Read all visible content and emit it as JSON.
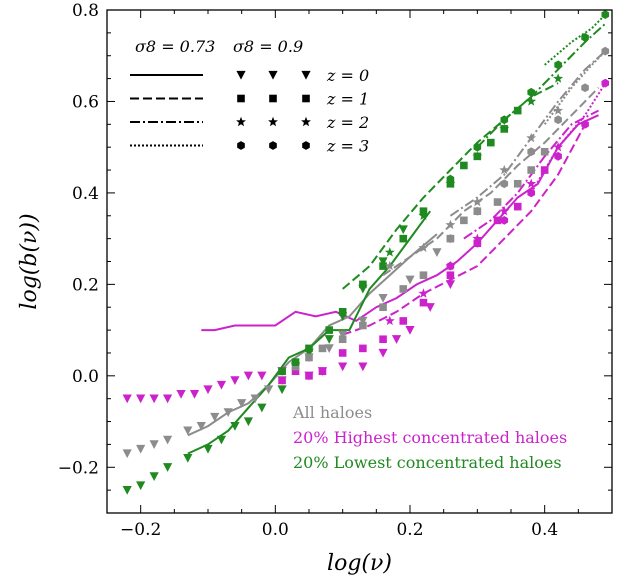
{
  "chart_data": {
    "type": "line",
    "xlabel": "log(ν)",
    "ylabel": "log(b(ν))",
    "xlim": [
      -0.25,
      0.5
    ],
    "ylim": [
      -0.3,
      0.8
    ],
    "xticks": [
      {
        "value": -0.2,
        "label": "−0.2"
      },
      {
        "value": 0.0,
        "label": "0.0"
      },
      {
        "value": 0.2,
        "label": "0.2"
      },
      {
        "value": 0.4,
        "label": "0.4"
      }
    ],
    "yticks": [
      {
        "value": -0.2,
        "label": "−0.2"
      },
      {
        "value": 0.0,
        "label": "0.0"
      },
      {
        "value": 0.2,
        "label": "0.2"
      },
      {
        "value": 0.4,
        "label": "0.4"
      },
      {
        "value": 0.6,
        "label": "0.6"
      },
      {
        "value": 0.8,
        "label": "0.8"
      }
    ],
    "grid": false,
    "colors": {
      "all": "#8c8c8c",
      "high": "#cc22cc",
      "low": "#1f8a1f"
    },
    "legend": {
      "placement": "top-left",
      "header_lines": "σ8 = 0.73",
      "header_markers": "σ8 = 0.9",
      "redshifts": [
        "z = 0",
        "z = 1",
        "z = 2",
        "z = 3"
      ]
    },
    "text_legend": {
      "placement": "bottom-right",
      "entries": [
        {
          "key": "all",
          "label": "All haloes"
        },
        {
          "key": "high",
          "label": "20% Highest concentrated haloes"
        },
        {
          "key": "low",
          "label": "20% Lowest concentrated haloes"
        }
      ]
    },
    "line_series": [
      {
        "group": "high",
        "z": 0,
        "x": [
          -0.11,
          -0.09,
          -0.06,
          -0.03,
          0.0,
          0.03,
          0.06,
          0.09,
          0.12,
          0.15,
          0.18,
          0.21,
          0.24,
          0.27,
          0.3,
          0.33,
          0.36,
          0.39,
          0.42,
          0.45,
          0.48
        ],
        "y": [
          0.1,
          0.1,
          0.11,
          0.11,
          0.11,
          0.14,
          0.13,
          0.14,
          0.12,
          0.15,
          0.17,
          0.2,
          0.22,
          0.25,
          0.29,
          0.34,
          0.39,
          0.42,
          0.5,
          0.55,
          0.57
        ]
      },
      {
        "group": "all",
        "z": 0,
        "x": [
          -0.13,
          -0.1,
          -0.07,
          -0.04,
          -0.01,
          0.02,
          0.05,
          0.08,
          0.11,
          0.14,
          0.17,
          0.2,
          0.24
        ],
        "y": [
          -0.13,
          -0.11,
          -0.08,
          -0.06,
          -0.02,
          0.03,
          0.06,
          0.11,
          0.13,
          0.18,
          0.22,
          0.26,
          0.31
        ]
      },
      {
        "group": "low",
        "z": 0,
        "x": [
          -0.13,
          -0.1,
          -0.07,
          -0.04,
          -0.01,
          0.02,
          0.05,
          0.08,
          0.11,
          0.14,
          0.17,
          0.2,
          0.23
        ],
        "y": [
          -0.17,
          -0.15,
          -0.12,
          -0.07,
          -0.02,
          0.04,
          0.06,
          0.1,
          0.1,
          0.19,
          0.24,
          0.3,
          0.36
        ]
      },
      {
        "group": "high",
        "z": 1,
        "x": [
          0.1,
          0.14,
          0.18,
          0.22,
          0.26,
          0.3,
          0.34,
          0.38,
          0.42,
          0.46
        ],
        "y": [
          0.09,
          0.11,
          0.14,
          0.18,
          0.21,
          0.24,
          0.3,
          0.36,
          0.44,
          0.55
        ]
      },
      {
        "group": "all",
        "z": 1,
        "x": [
          0.16,
          0.2,
          0.24,
          0.28,
          0.32,
          0.36,
          0.4,
          0.44,
          0.48
        ],
        "y": [
          0.22,
          0.26,
          0.3,
          0.36,
          0.4,
          0.46,
          0.51,
          0.57,
          0.63
        ]
      },
      {
        "group": "low",
        "z": 1,
        "x": [
          0.1,
          0.14,
          0.18,
          0.22,
          0.26,
          0.3,
          0.34,
          0.38,
          0.42
        ],
        "y": [
          0.19,
          0.24,
          0.32,
          0.39,
          0.45,
          0.51,
          0.56,
          0.61,
          0.64
        ]
      },
      {
        "group": "high",
        "z": 2,
        "x": [
          0.28,
          0.32,
          0.36,
          0.4,
          0.44,
          0.48
        ],
        "y": [
          0.3,
          0.34,
          0.4,
          0.48,
          0.55,
          0.58
        ]
      },
      {
        "group": "all",
        "z": 2,
        "x": [
          0.26,
          0.3,
          0.34,
          0.38,
          0.42,
          0.46,
          0.49
        ],
        "y": [
          0.35,
          0.39,
          0.44,
          0.52,
          0.6,
          0.67,
          0.71
        ]
      },
      {
        "group": "low",
        "z": 2,
        "x": [
          0.3,
          0.34,
          0.38,
          0.42,
          0.46,
          0.49
        ],
        "y": [
          0.5,
          0.56,
          0.61,
          0.67,
          0.73,
          0.77
        ]
      },
      {
        "group": "high",
        "z": 3,
        "x": [
          0.38,
          0.42,
          0.46,
          0.49
        ],
        "y": [
          0.4,
          0.5,
          0.57,
          0.64
        ]
      },
      {
        "group": "all",
        "z": 3,
        "x": [
          0.4,
          0.44,
          0.47,
          0.49
        ],
        "y": [
          0.55,
          0.63,
          0.68,
          0.71
        ]
      },
      {
        "group": "low",
        "z": 3,
        "x": [
          0.4,
          0.44,
          0.47,
          0.49
        ],
        "y": [
          0.68,
          0.73,
          0.76,
          0.79
        ]
      }
    ],
    "marker_series": [
      {
        "group": "high",
        "z": 0,
        "x": [
          -0.22,
          -0.2,
          -0.18,
          -0.16,
          -0.14,
          -0.12,
          -0.1,
          -0.08,
          -0.06,
          -0.04,
          -0.02,
          0.01,
          0.03,
          0.05,
          0.07,
          0.1,
          0.13,
          0.16,
          0.18,
          0.2,
          0.23,
          0.26
        ],
        "y": [
          -0.05,
          -0.05,
          -0.05,
          -0.05,
          -0.04,
          -0.04,
          -0.03,
          -0.02,
          -0.01,
          0.0,
          0.0,
          0.01,
          0.02,
          0.0,
          0.01,
          0.02,
          0.02,
          0.05,
          0.08,
          0.1,
          0.15,
          0.2
        ]
      },
      {
        "group": "all",
        "z": 0,
        "x": [
          -0.22,
          -0.2,
          -0.18,
          -0.16,
          -0.13,
          -0.11,
          -0.09,
          -0.07,
          -0.05,
          -0.03,
          -0.01,
          0.01,
          0.03,
          0.05,
          0.08,
          0.1,
          0.13,
          0.16,
          0.2,
          0.24
        ],
        "y": [
          -0.17,
          -0.16,
          -0.15,
          -0.14,
          -0.12,
          -0.11,
          -0.09,
          -0.08,
          -0.06,
          -0.05,
          -0.03,
          -0.01,
          0.02,
          0.04,
          0.06,
          0.09,
          0.12,
          0.17,
          0.21,
          0.27
        ]
      },
      {
        "group": "low",
        "z": 0,
        "x": [
          -0.22,
          -0.2,
          -0.18,
          -0.16,
          -0.13,
          -0.1,
          -0.08,
          -0.06,
          -0.04,
          -0.02,
          0.01,
          0.03,
          0.05,
          0.08,
          0.1,
          0.13,
          0.16,
          0.19
        ],
        "y": [
          -0.25,
          -0.24,
          -0.22,
          -0.2,
          -0.18,
          -0.16,
          -0.14,
          -0.11,
          -0.1,
          -0.07,
          -0.03,
          0.02,
          0.05,
          0.08,
          0.13,
          0.19,
          0.25,
          0.32
        ]
      },
      {
        "group": "high",
        "z": 1,
        "x": [
          0.01,
          0.03,
          0.05,
          0.07,
          0.1,
          0.13,
          0.16,
          0.19,
          0.22,
          0.26,
          0.3,
          0.33,
          0.36,
          0.4
        ],
        "y": [
          -0.01,
          0.01,
          0.0,
          0.01,
          0.05,
          0.06,
          0.08,
          0.12,
          0.16,
          0.22,
          0.29,
          0.34,
          0.37,
          0.45
        ]
      },
      {
        "group": "all",
        "z": 1,
        "x": [
          0.01,
          0.03,
          0.05,
          0.07,
          0.1,
          0.13,
          0.16,
          0.19,
          0.22,
          0.26,
          0.28,
          0.3,
          0.33,
          0.36,
          0.38,
          0.4
        ],
        "y": [
          0.01,
          0.02,
          0.04,
          0.06,
          0.08,
          0.11,
          0.15,
          0.19,
          0.22,
          0.3,
          0.34,
          0.36,
          0.38,
          0.42,
          0.45,
          0.49
        ]
      },
      {
        "group": "low",
        "z": 1,
        "x": [
          0.01,
          0.03,
          0.05,
          0.08,
          0.1,
          0.13,
          0.16,
          0.19,
          0.22,
          0.26,
          0.28,
          0.3,
          0.32,
          0.34,
          0.36
        ],
        "y": [
          0.01,
          0.03,
          0.06,
          0.1,
          0.14,
          0.2,
          0.24,
          0.3,
          0.36,
          0.42,
          0.46,
          0.48,
          0.51,
          0.54,
          0.58
        ]
      },
      {
        "group": "high",
        "z": 2,
        "x": [
          0.17,
          0.22,
          0.26,
          0.3,
          0.34,
          0.38,
          0.42
        ],
        "y": [
          0.12,
          0.18,
          0.24,
          0.3,
          0.36,
          0.42,
          0.5
        ]
      },
      {
        "group": "all",
        "z": 2,
        "x": [
          0.17,
          0.22,
          0.26,
          0.3,
          0.34,
          0.38,
          0.42
        ],
        "y": [
          0.24,
          0.28,
          0.33,
          0.38,
          0.45,
          0.52,
          0.58
        ]
      },
      {
        "group": "low",
        "z": 2,
        "x": [
          0.17,
          0.22,
          0.26,
          0.3,
          0.34,
          0.38,
          0.42
        ],
        "y": [
          0.27,
          0.35,
          0.42,
          0.48,
          0.54,
          0.6,
          0.65
        ]
      },
      {
        "group": "high",
        "z": 3,
        "x": [
          0.26,
          0.3,
          0.34,
          0.38,
          0.42,
          0.46,
          0.49
        ],
        "y": [
          0.24,
          0.29,
          0.34,
          0.4,
          0.48,
          0.55,
          0.64
        ]
      },
      {
        "group": "all",
        "z": 3,
        "x": [
          0.26,
          0.3,
          0.34,
          0.38,
          0.42,
          0.46,
          0.49
        ],
        "y": [
          0.3,
          0.36,
          0.42,
          0.49,
          0.56,
          0.63,
          0.71
        ]
      },
      {
        "group": "low",
        "z": 3,
        "x": [
          0.26,
          0.3,
          0.34,
          0.38,
          0.42,
          0.46,
          0.49
        ],
        "y": [
          0.43,
          0.5,
          0.56,
          0.62,
          0.68,
          0.74,
          0.79
        ]
      }
    ]
  }
}
